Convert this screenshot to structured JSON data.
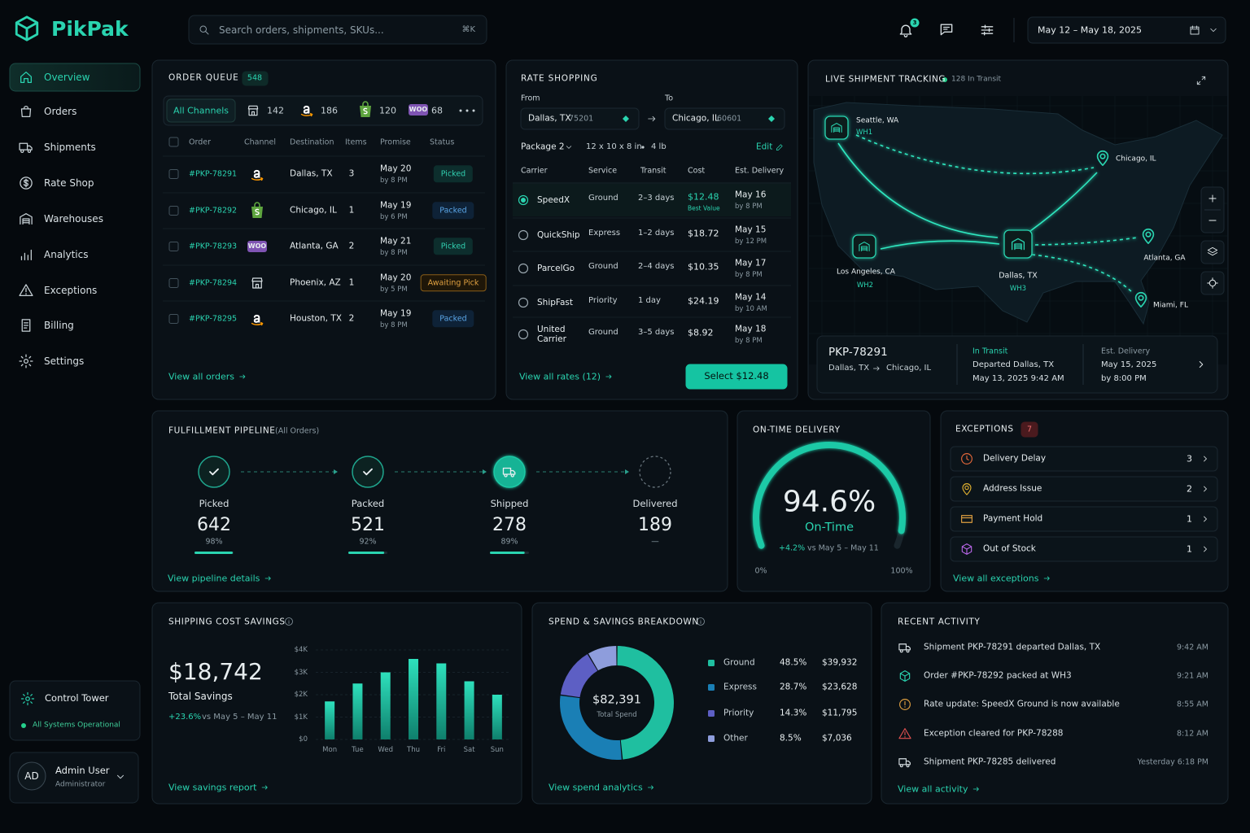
{
  "brand": "PikPak",
  "search": {
    "placeholder": "Search orders, shipments, SKUs...",
    "shortcut": "⌘K"
  },
  "notification_count": 3,
  "date_range": "May 12 – May 18, 2025",
  "nav": [
    "Overview",
    "Orders",
    "Shipments",
    "Rate Shop",
    "Warehouses",
    "Analytics",
    "Exceptions",
    "Billing",
    "Settings"
  ],
  "control_tower": {
    "title": "Control Tower",
    "status": "All Systems Operational"
  },
  "user": {
    "initials": "AD",
    "name": "Admin User",
    "role": "Administrator"
  },
  "order_queue": {
    "title": "ORDER QUEUE",
    "count": 548,
    "all_channels": "All Channels",
    "channels": [
      {
        "count": 142
      },
      {
        "count": 186
      },
      {
        "count": 120
      },
      {
        "label": "WOO",
        "count": 68
      }
    ],
    "columns": [
      "Order",
      "Channel",
      "Destination",
      "Items",
      "Promise",
      "Status"
    ],
    "rows": [
      {
        "order": "#PKP-78291",
        "destination": "Dallas, TX",
        "items": 3,
        "promise_date": "May 20",
        "promise_time": "by 8 PM",
        "status": "Picked"
      },
      {
        "order": "#PKP-78292",
        "destination": "Chicago, IL",
        "items": 1,
        "promise_date": "May 19",
        "promise_time": "by 6 PM",
        "status": "Packed"
      },
      {
        "order": "#PKP-78293",
        "destination": "Atlanta, GA",
        "items": 2,
        "promise_date": "May 21",
        "promise_time": "by 8 PM",
        "status": "Picked"
      },
      {
        "order": "#PKP-78294",
        "destination": "Phoenix, AZ",
        "items": 1,
        "promise_date": "May 20",
        "promise_time": "by 5 PM",
        "status": "Awaiting Pick"
      },
      {
        "order": "#PKP-78295",
        "destination": "Houston, TX",
        "items": 2,
        "promise_date": "May 19",
        "promise_time": "by 8 PM",
        "status": "Packed"
      }
    ],
    "link": "View all orders"
  },
  "rate_shopping": {
    "title": "RATE SHOPPING",
    "from_label": "From",
    "to_label": "To",
    "from": {
      "city": "Dallas, TX",
      "zip": "75201"
    },
    "to": {
      "city": "Chicago, IL",
      "zip": "60601"
    },
    "package": "Package 2",
    "dimensions": "12 x 10 x 8 in",
    "weight": "4 lb",
    "edit": "Edit",
    "columns": [
      "Carrier",
      "Service",
      "Transit",
      "Cost",
      "Est. Delivery"
    ],
    "rows": [
      {
        "carrier": "SpeedX",
        "service": "Ground",
        "transit": "2–3 days",
        "cost": "$12.48",
        "note": "Best Value",
        "delivery_date": "May 16",
        "delivery_time": "by 8 PM"
      },
      {
        "carrier": "QuickShip",
        "service": "Express",
        "transit": "1–2 days",
        "cost": "$18.72",
        "delivery_date": "May 15",
        "delivery_time": "by 12 PM"
      },
      {
        "carrier": "ParcelGo",
        "service": "Ground",
        "transit": "2–4 days",
        "cost": "$10.35",
        "delivery_date": "May 17",
        "delivery_time": "by 8 PM"
      },
      {
        "carrier": "ShipFast",
        "service": "Priority",
        "transit": "1 day",
        "cost": "$24.19",
        "delivery_date": "May 14",
        "delivery_time": "by 10 AM"
      },
      {
        "carrier": "United Carrier",
        "service": "Ground",
        "transit": "3–5 days",
        "cost": "$8.92",
        "delivery_date": "May 18",
        "delivery_time": "by 8 PM"
      }
    ],
    "link": "View all rates (12)",
    "button": "Select $12.48"
  },
  "tracking": {
    "title": "LIVE SHIPMENT TRACKING",
    "in_transit": "128 In Transit",
    "locations": [
      {
        "name": "Seattle, WA",
        "code": "WH1"
      },
      {
        "name": "Chicago, IL"
      },
      {
        "name": "Los Angeles, CA",
        "code": "WH2"
      },
      {
        "name": "Dallas, TX",
        "code": "WH3"
      },
      {
        "name": "Atlanta, GA"
      },
      {
        "name": "Miami, FL"
      }
    ],
    "shipment": {
      "id": "PKP-78291",
      "origin": "Dallas, TX",
      "destination": "Chicago, IL",
      "status": "In Transit",
      "event": "Departed Dallas, TX",
      "event_time": "May 13, 2025 9:42 AM",
      "eta_label": "Est. Delivery",
      "eta_date": "May 15, 2025",
      "eta_time": "by 8:00 PM"
    }
  },
  "pipeline": {
    "title": "FULFILLMENT PIPELINE",
    "scope": "(All Orders)",
    "stages": [
      {
        "name": "Picked",
        "count": 642,
        "percent": 98,
        "percent_label": "98%"
      },
      {
        "name": "Packed",
        "count": 521,
        "percent": 92,
        "percent_label": "92%"
      },
      {
        "name": "Shipped",
        "count": 278,
        "percent": 89,
        "percent_label": "89%"
      },
      {
        "name": "Delivered",
        "count": 189,
        "percent": null,
        "percent_label": "—"
      }
    ],
    "link": "View pipeline details"
  },
  "on_time": {
    "title": "ON-TIME DELIVERY",
    "type": "gauge",
    "value": 94.6,
    "value_label": "94.6%",
    "caption": "On-Time",
    "change": "+4.2%",
    "comparison": "vs May 5 – May 11",
    "min": {
      "value": 0,
      "label": "0%"
    },
    "max": {
      "value": 100,
      "label": "100%"
    },
    "color": "#1fc9a6"
  },
  "exceptions": {
    "title": "EXCEPTIONS",
    "count": 7,
    "items": [
      {
        "name": "Delivery Delay",
        "count": 3
      },
      {
        "name": "Address Issue",
        "count": 2
      },
      {
        "name": "Payment Hold",
        "count": 1
      },
      {
        "name": "Out of Stock",
        "count": 1
      }
    ],
    "link": "View all exceptions"
  },
  "savings": {
    "title": "SHIPPING COST SAVINGS",
    "total": "$18,742",
    "total_label": "Total Savings",
    "change": "+23.6%",
    "comparison": "vs May 5 – May 11",
    "chart": {
      "type": "bar",
      "categories": [
        "Mon",
        "Tue",
        "Wed",
        "Thu",
        "Fri",
        "Sat",
        "Sun"
      ],
      "values": [
        1700,
        2500,
        3000,
        3600,
        3400,
        2600,
        2000
      ],
      "color": "#1fbfa0",
      "ylim": [
        0,
        4000
      ],
      "yticks": [
        {
          "value": 0,
          "label": "$0"
        },
        {
          "value": 1000,
          "label": "$1K"
        },
        {
          "value": 2000,
          "label": "$2K"
        },
        {
          "value": 3000,
          "label": "$3K"
        },
        {
          "value": 4000,
          "label": "$4K"
        }
      ],
      "grid": true
    },
    "link": "View savings report"
  },
  "spend": {
    "title": "SPEND & SAVINGS BREAKDOWN",
    "total": "$82,391",
    "total_label": "Total Spend",
    "chart": {
      "type": "pie",
      "categories": [
        "Ground",
        "Express",
        "Priority",
        "Other"
      ],
      "values": [
        48.5,
        28.7,
        14.3,
        8.5
      ],
      "value_labels": [
        "48.5%",
        "28.7%",
        "14.3%",
        "8.5%"
      ],
      "amounts": [
        "$39,932",
        "$23,628",
        "$11,795",
        "$7,036"
      ],
      "colors": [
        "#1fbfa0",
        "#1a7fb5",
        "#5d5fc4",
        "#8e9ddc"
      ]
    },
    "link": "View spend analytics"
  },
  "activity": {
    "title": "RECENT ACTIVITY",
    "items": [
      {
        "text": "Shipment PKP-78291 departed Dallas, TX",
        "time": "9:42 AM"
      },
      {
        "text": "Order #PKP-78292 packed at WH3",
        "time": "9:21 AM"
      },
      {
        "text": "Rate update: SpeedX Ground is now available",
        "time": "8:55 AM"
      },
      {
        "text": "Exception cleared for PKP-78288",
        "time": "8:12 AM"
      },
      {
        "text": "Shipment PKP-78285 delivered",
        "time": "Yesterday 6:18 PM"
      }
    ],
    "link": "View all activity"
  }
}
